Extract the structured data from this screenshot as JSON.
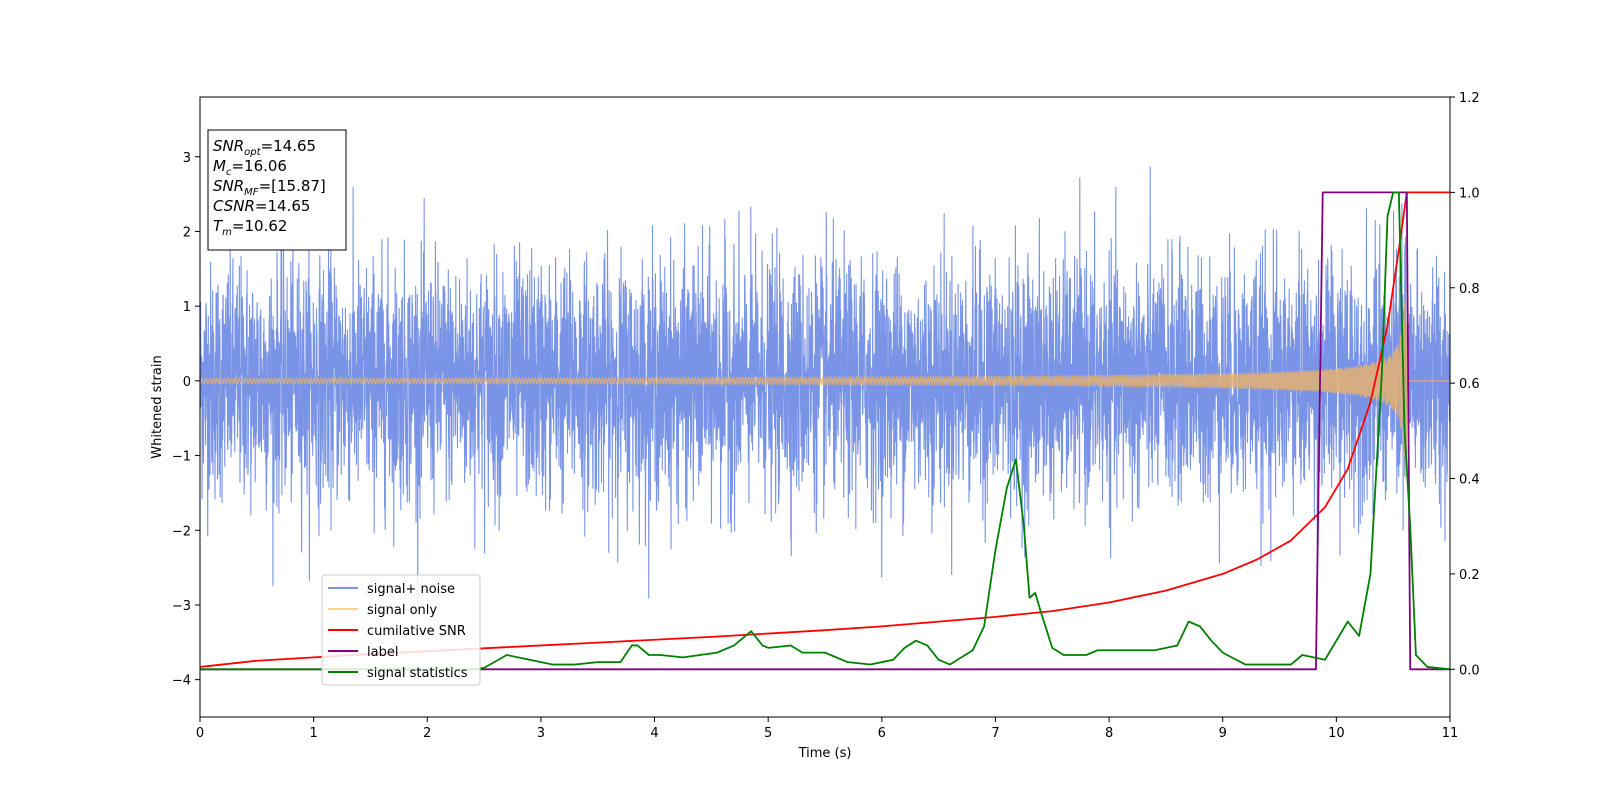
{
  "chart_data": {
    "type": "line",
    "xlabel": "Time (s)",
    "ylabel": "Whitened strain",
    "xlim": [
      0,
      11
    ],
    "ylim": [
      -4.5,
      3.8
    ],
    "y2lim": [
      -0.1,
      1.2
    ],
    "x_ticks": [
      "0",
      "1",
      "2",
      "3",
      "4",
      "5",
      "6",
      "7",
      "8",
      "9",
      "10",
      "11"
    ],
    "y_ticks": [
      "−4",
      "−3",
      "−2",
      "−1",
      "0",
      "1",
      "2",
      "3"
    ],
    "y2_ticks": [
      "0.0",
      "0.2",
      "0.4",
      "0.6",
      "0.8",
      "1.0",
      "1.2"
    ],
    "legend_position": "lower-left",
    "info_box": {
      "position": "upper-left",
      "lines": [
        {
          "base": "SNR",
          "sub": "opt",
          "value": "=14.65"
        },
        {
          "base": "M",
          "sub": "c",
          "value": "=16.06"
        },
        {
          "base": "SNR",
          "sub": "MF",
          "value": "=[15.87]"
        },
        {
          "base": "CSNR",
          "sub": "",
          "value": "=14.65"
        },
        {
          "base": "T",
          "sub": "m",
          "value": "=10.62"
        }
      ]
    },
    "series": [
      {
        "name": "signal+ noise",
        "axis": "left",
        "color": "#7994e6",
        "kind": "noise",
        "sigma": 1.0,
        "merger_time": 10.62
      },
      {
        "name": "signal only",
        "axis": "left",
        "color": "#e6b070",
        "legend_color": "#ffd27f",
        "kind": "chirp",
        "merger_time": 10.62,
        "peak_amplitude": 1.3
      },
      {
        "name": "cumilative SNR",
        "axis": "right",
        "color": "#ff0000",
        "x": [
          0,
          0.5,
          1,
          1.5,
          2,
          2.5,
          3,
          3.5,
          4,
          4.5,
          5,
          5.5,
          6,
          6.5,
          7,
          7.5,
          8,
          8.5,
          9,
          9.3,
          9.6,
          9.9,
          10.1,
          10.3,
          10.45,
          10.55,
          10.62,
          11
        ],
        "values": [
          0.005,
          0.018,
          0.025,
          0.032,
          0.038,
          0.044,
          0.05,
          0.056,
          0.062,
          0.068,
          0.075,
          0.082,
          0.09,
          0.1,
          0.11,
          0.122,
          0.14,
          0.165,
          0.2,
          0.23,
          0.27,
          0.34,
          0.42,
          0.56,
          0.72,
          0.88,
          1.0,
          1.0
        ]
      },
      {
        "name": "label",
        "axis": "right",
        "color": "#800080",
        "x": [
          0,
          9.82,
          9.88,
          10.62,
          10.65,
          11
        ],
        "values": [
          0,
          0,
          1,
          1,
          0,
          0
        ]
      },
      {
        "name": "signal statistics",
        "axis": "right",
        "color": "#008000",
        "x": [
          0,
          2.4,
          2.5,
          2.7,
          2.9,
          3.1,
          3.3,
          3.5,
          3.7,
          3.8,
          3.85,
          3.95,
          4.05,
          4.25,
          4.4,
          4.55,
          4.7,
          4.85,
          4.95,
          5.0,
          5.2,
          5.3,
          5.5,
          5.7,
          5.9,
          6.1,
          6.2,
          6.3,
          6.4,
          6.5,
          6.6,
          6.8,
          6.9,
          7.0,
          7.1,
          7.18,
          7.25,
          7.3,
          7.35,
          7.4,
          7.5,
          7.6,
          7.8,
          7.9,
          8.0,
          8.2,
          8.4,
          8.5,
          8.6,
          8.7,
          8.8,
          8.9,
          9.0,
          9.2,
          9.4,
          9.6,
          9.7,
          9.9,
          10.0,
          10.1,
          10.2,
          10.3,
          10.4,
          10.45,
          10.5,
          10.55,
          10.6,
          10.65,
          10.7,
          10.8,
          11
        ],
        "values": [
          0,
          0,
          0.003,
          0.03,
          0.02,
          0.01,
          0.01,
          0.015,
          0.015,
          0.05,
          0.05,
          0.03,
          0.03,
          0.025,
          0.03,
          0.035,
          0.05,
          0.08,
          0.05,
          0.045,
          0.05,
          0.035,
          0.035,
          0.015,
          0.01,
          0.02,
          0.045,
          0.06,
          0.05,
          0.02,
          0.01,
          0.04,
          0.09,
          0.25,
          0.38,
          0.44,
          0.3,
          0.15,
          0.16,
          0.12,
          0.045,
          0.03,
          0.03,
          0.04,
          0.04,
          0.04,
          0.04,
          0.045,
          0.05,
          0.1,
          0.09,
          0.06,
          0.035,
          0.01,
          0.01,
          0.01,
          0.03,
          0.02,
          0.06,
          0.1,
          0.07,
          0.2,
          0.62,
          0.95,
          1.0,
          1.0,
          0.5,
          0.3,
          0.03,
          0.005,
          0
        ]
      }
    ]
  }
}
